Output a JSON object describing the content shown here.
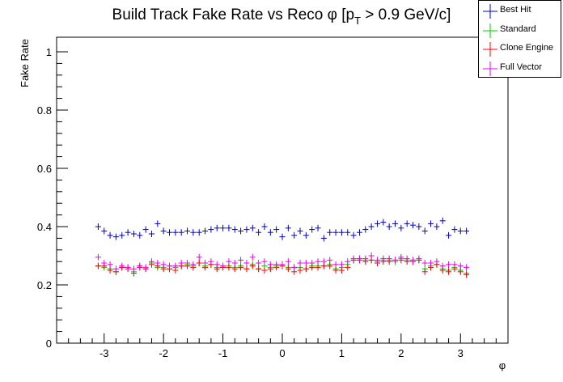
{
  "chart_data": {
    "type": "scatter",
    "title": "Build Track Fake Rate vs Reco φ [p",
    "title_sub": "T",
    "title_tail": " > 0.9 GeV/c]",
    "xlabel": "φ",
    "ylabel": "Fake Rate",
    "xlim": [
      -3.8,
      3.8
    ],
    "ylim": [
      0,
      1.05
    ],
    "xticks": [
      -3,
      -2,
      -1,
      0,
      1,
      2,
      3
    ],
    "xtick_labels": [
      "-3",
      "-2",
      "-1",
      "0",
      "1",
      "2",
      "3"
    ],
    "yticks": [
      0,
      0.2,
      0.4,
      0.6,
      0.8,
      1
    ],
    "ytick_labels": [
      "0",
      "0.2",
      "0.4",
      "0.6",
      "0.8",
      "1"
    ],
    "grid": false,
    "legend_position": "top-right",
    "x": [
      -3.1,
      -3.0,
      -2.9,
      -2.8,
      -2.7,
      -2.6,
      -2.5,
      -2.4,
      -2.3,
      -2.2,
      -2.1,
      -2.0,
      -1.9,
      -1.8,
      -1.7,
      -1.6,
      -1.5,
      -1.4,
      -1.3,
      -1.2,
      -1.1,
      -1.0,
      -0.9,
      -0.8,
      -0.7,
      -0.6,
      -0.5,
      -0.4,
      -0.3,
      -0.2,
      -0.1,
      0.0,
      0.1,
      0.2,
      0.3,
      0.4,
      0.5,
      0.6,
      0.7,
      0.8,
      0.9,
      1.0,
      1.1,
      1.2,
      1.3,
      1.4,
      1.5,
      1.6,
      1.7,
      1.8,
      1.9,
      2.0,
      2.1,
      2.2,
      2.3,
      2.4,
      2.5,
      2.6,
      2.7,
      2.8,
      2.9,
      3.0,
      3.1
    ],
    "series": [
      {
        "name": "Best Hit",
        "color": "#0000cc",
        "values": [
          0.4,
          0.385,
          0.37,
          0.365,
          0.37,
          0.38,
          0.375,
          0.37,
          0.39,
          0.375,
          0.41,
          0.385,
          0.38,
          0.38,
          0.38,
          0.385,
          0.38,
          0.38,
          0.385,
          0.39,
          0.395,
          0.395,
          0.395,
          0.39,
          0.385,
          0.39,
          0.395,
          0.38,
          0.4,
          0.38,
          0.39,
          0.365,
          0.395,
          0.37,
          0.385,
          0.37,
          0.39,
          0.395,
          0.36,
          0.38,
          0.38,
          0.38,
          0.38,
          0.37,
          0.38,
          0.39,
          0.4,
          0.41,
          0.415,
          0.4,
          0.41,
          0.395,
          0.41,
          0.405,
          0.4,
          0.385,
          0.41,
          0.4,
          0.42,
          0.37,
          0.39,
          0.385,
          0.385
        ]
      },
      {
        "name": "Standard",
        "color": "#00cc00",
        "values": [
          0.265,
          0.26,
          0.255,
          0.245,
          0.26,
          0.26,
          0.245,
          0.265,
          0.255,
          0.275,
          0.26,
          0.26,
          0.255,
          0.26,
          0.265,
          0.27,
          0.265,
          0.275,
          0.265,
          0.27,
          0.26,
          0.26,
          0.265,
          0.26,
          0.265,
          0.255,
          0.27,
          0.255,
          0.265,
          0.26,
          0.265,
          0.265,
          0.26,
          0.26,
          0.26,
          0.255,
          0.265,
          0.265,
          0.265,
          0.27,
          0.255,
          0.26,
          0.27,
          0.285,
          0.29,
          0.285,
          0.285,
          0.28,
          0.285,
          0.285,
          0.28,
          0.29,
          0.285,
          0.285,
          0.285,
          0.255,
          0.265,
          0.27,
          0.255,
          0.25,
          0.26,
          0.25,
          0.24
        ]
      },
      {
        "name": "Clone Engine",
        "color": "#ff0000",
        "values": [
          0.265,
          0.265,
          0.25,
          0.245,
          0.26,
          0.255,
          0.24,
          0.26,
          0.255,
          0.27,
          0.265,
          0.255,
          0.255,
          0.25,
          0.265,
          0.265,
          0.26,
          0.275,
          0.26,
          0.27,
          0.255,
          0.26,
          0.26,
          0.255,
          0.26,
          0.255,
          0.265,
          0.255,
          0.25,
          0.255,
          0.26,
          0.265,
          0.255,
          0.245,
          0.25,
          0.255,
          0.26,
          0.26,
          0.265,
          0.265,
          0.25,
          0.25,
          0.26,
          0.285,
          0.285,
          0.28,
          0.285,
          0.275,
          0.28,
          0.28,
          0.285,
          0.285,
          0.28,
          0.28,
          0.285,
          0.245,
          0.26,
          0.27,
          0.25,
          0.245,
          0.255,
          0.245,
          0.235
        ]
      },
      {
        "name": "Full Vector",
        "color": "#ee00ee",
        "values": [
          0.295,
          0.275,
          0.27,
          0.255,
          0.265,
          0.26,
          0.255,
          0.265,
          0.26,
          0.28,
          0.275,
          0.27,
          0.265,
          0.265,
          0.275,
          0.275,
          0.27,
          0.295,
          0.275,
          0.28,
          0.27,
          0.265,
          0.28,
          0.275,
          0.285,
          0.275,
          0.295,
          0.275,
          0.28,
          0.27,
          0.27,
          0.27,
          0.28,
          0.26,
          0.275,
          0.275,
          0.275,
          0.28,
          0.28,
          0.285,
          0.27,
          0.27,
          0.28,
          0.29,
          0.29,
          0.29,
          0.3,
          0.285,
          0.29,
          0.29,
          0.285,
          0.295,
          0.29,
          0.285,
          0.29,
          0.275,
          0.275,
          0.28,
          0.265,
          0.27,
          0.27,
          0.265,
          0.26
        ]
      }
    ]
  }
}
